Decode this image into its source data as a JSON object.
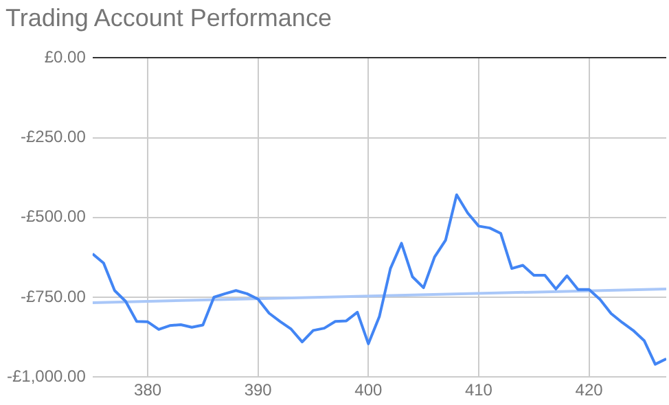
{
  "chart_data": {
    "type": "line",
    "title": "Trading Account Performance",
    "x": [
      375,
      376,
      377,
      378,
      379,
      380,
      381,
      382,
      383,
      384,
      385,
      386,
      387,
      388,
      389,
      390,
      391,
      392,
      393,
      394,
      395,
      396,
      397,
      398,
      399,
      400,
      401,
      402,
      403,
      404,
      405,
      406,
      407,
      408,
      409,
      410,
      411,
      412,
      413,
      414,
      415,
      416,
      417,
      418,
      419,
      420,
      421,
      422,
      423,
      424,
      425,
      426,
      427
    ],
    "series": [
      {
        "color": "#4285f4",
        "values": [
          -614,
          -643,
          -729,
          -763,
          -826,
          -827,
          -851,
          -839,
          -836,
          -844,
          -837,
          -750,
          -739,
          -729,
          -739,
          -756,
          -800,
          -826,
          -850,
          -890,
          -854,
          -847,
          -826,
          -824,
          -797,
          -896,
          -810,
          -660,
          -581,
          -686,
          -720,
          -624,
          -571,
          -429,
          -486,
          -527,
          -533,
          -550,
          -660,
          -650,
          -681,
          -681,
          -724,
          -683,
          -726,
          -726,
          -757,
          -801,
          -829,
          -854,
          -886,
          -960,
          -943
        ]
      },
      {
        "type": "line",
        "color": "#a9c7f8",
        "x": [
          375,
          427
        ],
        "values": [
          -767,
          -724
        ]
      }
    ],
    "xlim": [
      375,
      427
    ],
    "xticks": [
      380,
      390,
      400,
      410,
      420
    ],
    "ylim": [
      -1000,
      0
    ],
    "yticks": [
      {
        "value": 0,
        "label": "£0.00"
      },
      {
        "value": -250,
        "label": "-£250.00"
      },
      {
        "value": -500,
        "label": "-£500.00"
      },
      {
        "value": -750,
        "label": "-£750.00"
      },
      {
        "value": -1000,
        "label": "-£1,000.00"
      }
    ],
    "grid": true,
    "legend": false,
    "marker": "none",
    "line_style": "solid"
  }
}
